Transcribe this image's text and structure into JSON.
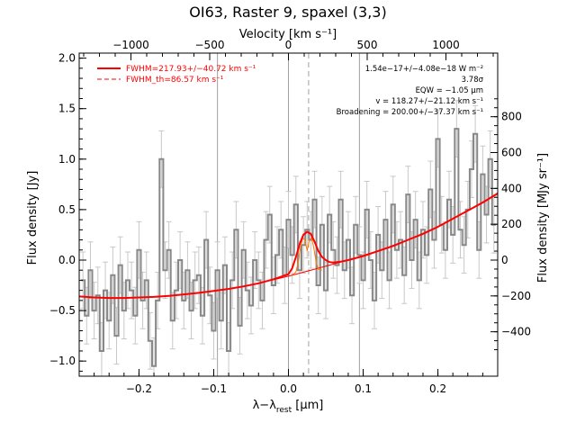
{
  "chart_data": {
    "type": "line",
    "title": "OI63, Raster 9, spaxel (3,3)",
    "xlabel_main": "λ−λ",
    "xlabel_sub": "rest",
    "xlabel_unit": " [μm]",
    "ylabel": "Flux density [Jy]",
    "ylabel_right": "Flux density [MJy sr⁻¹]",
    "top_axis_label": "Velocity [km s⁻¹]",
    "xlim": [
      -0.28,
      0.28
    ],
    "ylim": [
      -1.15,
      2.05
    ],
    "xticks": [
      -0.2,
      -0.1,
      0.0,
      0.1,
      0.2
    ],
    "xtick_labels": [
      "−0.2",
      "−0.1",
      "0.0",
      "0.1",
      "0.2"
    ],
    "yticks": [
      -1.0,
      -0.5,
      0.0,
      0.5,
      1.0,
      1.5,
      2.0
    ],
    "ytick_labels": [
      "−1.0",
      "−0.5",
      "0.0",
      "0.5",
      "1.0",
      "1.5",
      "2.0"
    ],
    "vel_ticks": [
      -1000,
      -500,
      0,
      500,
      1000
    ],
    "vel_tick_labels": [
      "−1000",
      "−500",
      "0",
      "500",
      "1000"
    ],
    "right_ticks": [
      -400,
      -200,
      0,
      200,
      400,
      600,
      800
    ],
    "right_tick_labels": [
      "−400",
      "−200",
      "0",
      "200",
      "400",
      "600",
      "800"
    ],
    "vertical_lines_solid": [
      -0.095,
      0.0,
      0.095
    ],
    "vertical_line_dashed": 0.027,
    "legend": {
      "fwhm_label": "FWHM=217.93+/−40.72 km s⁻¹",
      "fwhm_th_label": "FWHM_th=86.57 km s⁻¹"
    },
    "annotations": [
      "1.54e−17+/−4.08e−18 W m⁻²",
      "3.78σ",
      "EQW = −1.05 μm",
      "v = 118.27+/−21.12 km s⁻¹",
      "Broadening = 200.00+/−37.37 km s⁻¹"
    ],
    "colors": {
      "data": "#888888",
      "fit": "#ff0000",
      "thin_fit": "#ff7a00",
      "axis": "#000000"
    },
    "spectrum": {
      "x": [
        -0.275,
        -0.27,
        -0.265,
        -0.26,
        -0.255,
        -0.25,
        -0.245,
        -0.24,
        -0.235,
        -0.23,
        -0.225,
        -0.22,
        -0.215,
        -0.21,
        -0.205,
        -0.2,
        -0.195,
        -0.19,
        -0.185,
        -0.18,
        -0.175,
        -0.17,
        -0.165,
        -0.16,
        -0.155,
        -0.15,
        -0.145,
        -0.14,
        -0.135,
        -0.13,
        -0.125,
        -0.12,
        -0.115,
        -0.11,
        -0.105,
        -0.1,
        -0.095,
        -0.09,
        -0.085,
        -0.08,
        -0.075,
        -0.07,
        -0.065,
        -0.06,
        -0.055,
        -0.05,
        -0.045,
        -0.04,
        -0.035,
        -0.03,
        -0.025,
        -0.02,
        -0.015,
        -0.01,
        -0.005,
        0.0,
        0.005,
        0.01,
        0.015,
        0.02,
        0.025,
        0.03,
        0.035,
        0.04,
        0.045,
        0.05,
        0.055,
        0.06,
        0.065,
        0.07,
        0.075,
        0.08,
        0.085,
        0.09,
        0.095,
        0.1,
        0.105,
        0.11,
        0.115,
        0.12,
        0.125,
        0.13,
        0.135,
        0.14,
        0.145,
        0.15,
        0.155,
        0.16,
        0.165,
        0.17,
        0.175,
        0.18,
        0.185,
        0.19,
        0.195,
        0.2,
        0.205,
        0.21,
        0.215,
        0.22,
        0.225,
        0.23,
        0.235,
        0.24,
        0.245,
        0.25,
        0.255,
        0.26,
        0.265,
        0.27,
        0.275
      ],
      "y": [
        -0.2,
        -0.55,
        -0.1,
        -0.5,
        -0.35,
        -0.9,
        -0.3,
        -0.6,
        -0.15,
        -0.75,
        -0.05,
        -0.5,
        -0.2,
        -0.3,
        -0.55,
        0.1,
        -0.4,
        -0.2,
        -0.8,
        -1.05,
        -0.4,
        1.0,
        -0.1,
        0.1,
        -0.6,
        -0.3,
        0.0,
        -0.4,
        -0.1,
        -0.5,
        -0.2,
        -0.15,
        -0.55,
        0.2,
        -0.35,
        -0.7,
        -0.1,
        -0.6,
        -0.05,
        -0.9,
        -0.2,
        0.3,
        -0.65,
        0.1,
        -0.3,
        -0.45,
        0.0,
        -0.2,
        -0.4,
        0.2,
        0.45,
        -0.25,
        0.05,
        0.3,
        -0.15,
        0.4,
        0.05,
        0.55,
        -0.1,
        0.15,
        0.3,
        0.2,
        0.6,
        -0.25,
        0.35,
        -0.3,
        0.45,
        0.1,
        -0.05,
        0.6,
        -0.1,
        0.2,
        -0.35,
        0.35,
        0.05,
        -0.2,
        0.5,
        0.0,
        -0.4,
        0.25,
        -0.1,
        0.4,
        -0.2,
        0.55,
        0.1,
        0.2,
        -0.15,
        0.65,
        0.0,
        0.4,
        -0.2,
        0.3,
        0.05,
        0.7,
        0.2,
        1.2,
        0.35,
        0.1,
        0.6,
        0.25,
        1.3,
        0.3,
        0.15,
        0.5,
        0.9,
        1.25,
        0.1,
        0.85,
        0.45,
        1.0,
        0.35
      ],
      "errors": [
        0.28,
        0.28,
        0.28,
        0.28,
        0.28,
        0.28,
        0.28,
        0.28,
        0.28,
        0.28,
        0.28,
        0.28,
        0.28,
        0.28,
        0.28,
        0.28,
        0.28,
        0.28,
        0.28,
        0.28,
        0.28,
        0.28,
        0.28,
        0.28,
        0.28,
        0.28,
        0.28,
        0.28,
        0.28,
        0.28,
        0.28,
        0.28,
        0.28,
        0.28,
        0.28,
        0.28,
        0.28,
        0.28,
        0.28,
        0.28,
        0.28,
        0.28,
        0.28,
        0.28,
        0.28,
        0.28,
        0.28,
        0.28,
        0.28,
        0.28,
        0.28,
        0.28,
        0.28,
        0.28,
        0.28,
        0.28,
        0.28,
        0.28,
        0.28,
        0.28,
        0.28,
        0.28,
        0.28,
        0.28,
        0.28,
        0.28,
        0.28,
        0.28,
        0.28,
        0.28,
        0.28,
        0.28,
        0.28,
        0.28,
        0.28,
        0.28,
        0.28,
        0.28,
        0.28,
        0.28,
        0.28,
        0.28,
        0.28,
        0.28,
        0.28,
        0.28,
        0.28,
        0.28,
        0.28,
        0.28,
        0.28,
        0.28,
        0.28,
        0.28,
        0.28,
        0.28,
        0.28,
        0.28,
        0.28,
        0.28,
        0.28,
        0.28,
        0.28,
        0.28,
        0.28,
        0.28,
        0.28,
        0.28,
        0.28,
        0.28,
        0.28
      ]
    },
    "fit": {
      "x": [
        -0.28,
        -0.26,
        -0.24,
        -0.22,
        -0.2,
        -0.18,
        -0.16,
        -0.14,
        -0.12,
        -0.1,
        -0.08,
        -0.06,
        -0.04,
        -0.02,
        0.0,
        0.005,
        0.01,
        0.015,
        0.02,
        0.025,
        0.03,
        0.035,
        0.04,
        0.045,
        0.05,
        0.055,
        0.06,
        0.07,
        0.08,
        0.1,
        0.12,
        0.14,
        0.16,
        0.18,
        0.2,
        0.22,
        0.24,
        0.26,
        0.28
      ],
      "y": [
        -0.36,
        -0.37,
        -0.375,
        -0.375,
        -0.37,
        -0.365,
        -0.355,
        -0.34,
        -0.325,
        -0.305,
        -0.285,
        -0.26,
        -0.23,
        -0.19,
        -0.14,
        -0.08,
        0.03,
        0.16,
        0.25,
        0.28,
        0.26,
        0.18,
        0.09,
        0.03,
        0.0,
        -0.02,
        -0.025,
        -0.015,
        0.0,
        0.04,
        0.09,
        0.14,
        0.2,
        0.26,
        0.33,
        0.41,
        0.49,
        0.57,
        0.66
      ]
    },
    "continuum": {
      "x": [
        -0.28,
        -0.24,
        -0.2,
        -0.16,
        -0.12,
        -0.08,
        -0.04,
        0.0,
        0.04,
        0.08,
        0.12,
        0.16,
        0.2,
        0.24,
        0.28
      ],
      "y": [
        -0.36,
        -0.375,
        -0.37,
        -0.355,
        -0.325,
        -0.285,
        -0.23,
        -0.16,
        -0.08,
        0.0,
        0.09,
        0.2,
        0.33,
        0.49,
        0.66
      ]
    },
    "thin_fit": {
      "x": [
        0.005,
        0.01,
        0.013,
        0.016,
        0.019,
        0.022,
        0.025,
        0.028,
        0.031,
        0.034,
        0.037,
        0.04,
        0.045
      ],
      "y": [
        -0.145,
        -0.12,
        -0.02,
        0.12,
        0.22,
        0.2,
        0.09,
        0.2,
        0.22,
        0.12,
        -0.02,
        -0.09,
        -0.1
      ]
    }
  }
}
